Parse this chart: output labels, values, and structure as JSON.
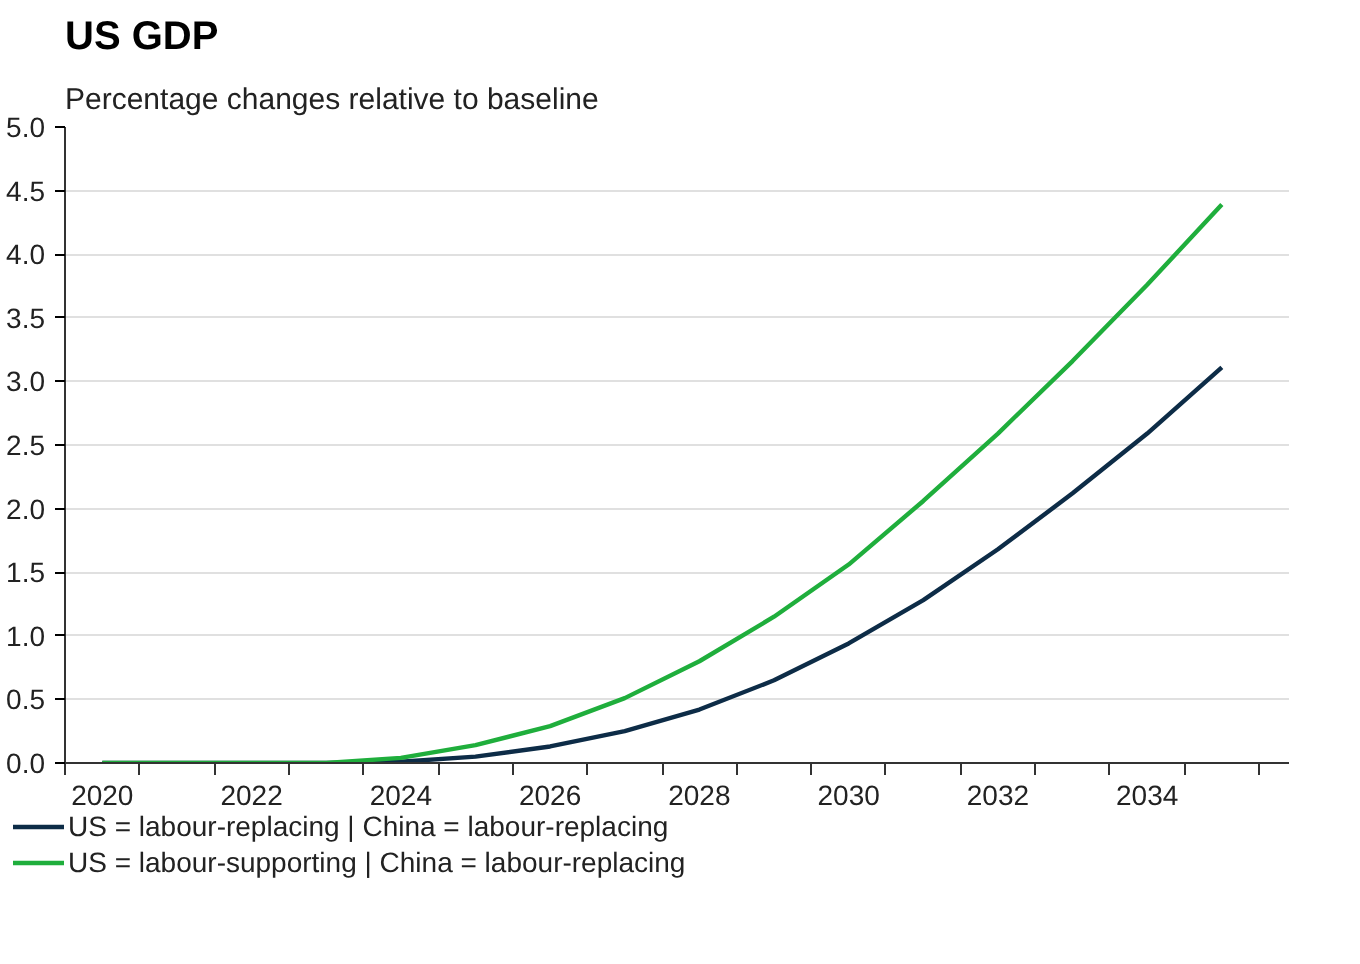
{
  "chart_data": {
    "type": "line",
    "title": "US GDP",
    "subtitle": "Percentage changes relative to baseline",
    "x": [
      2020,
      2021,
      2022,
      2023,
      2024,
      2025,
      2026,
      2027,
      2028,
      2029,
      2030,
      2031,
      2032,
      2033,
      2034,
      2035
    ],
    "series": [
      {
        "name": "US = labour-replacing | China = labour-replacing",
        "color": "#0d2c47",
        "values": [
          0,
          0,
          0,
          0,
          0.01,
          0.05,
          0.13,
          0.25,
          0.42,
          0.65,
          0.94,
          1.28,
          1.68,
          2.12,
          2.59,
          3.11
        ]
      },
      {
        "name": "US = labour-supporting | China = labour-replacing",
        "color": "#1fae3c",
        "values": [
          0,
          0,
          0,
          0,
          0.04,
          0.14,
          0.29,
          0.51,
          0.8,
          1.15,
          1.56,
          2.06,
          2.59,
          3.16,
          3.76,
          4.39
        ]
      }
    ],
    "xlim": [
      2019.5,
      2035.9
    ],
    "xticks": [
      {
        "value": 2019.5,
        "label": null
      },
      2020,
      {
        "value": 2020.5,
        "label": null
      },
      {
        "value": 2021.5,
        "label": null
      },
      2022,
      {
        "value": 2022.5,
        "label": null
      },
      {
        "value": 2023.5,
        "label": null
      },
      2024,
      {
        "value": 2024.5,
        "label": null
      },
      {
        "value": 2025.5,
        "label": null
      },
      2026,
      {
        "value": 2026.5,
        "label": null
      },
      {
        "value": 2027.5,
        "label": null
      },
      2028,
      {
        "value": 2028.5,
        "label": null
      },
      {
        "value": 2029.5,
        "label": null
      },
      2030,
      {
        "value": 2030.5,
        "label": null
      },
      {
        "value": 2031.5,
        "label": null
      },
      2032,
      {
        "value": 2032.5,
        "label": null
      },
      {
        "value": 2033.5,
        "label": null
      },
      2034,
      {
        "value": 2034.5,
        "label": null
      },
      {
        "value": 2035.5,
        "label": null
      }
    ],
    "ylim": [
      0,
      5
    ],
    "yticks": [
      {
        "value": 0,
        "label": "0.0"
      },
      {
        "value": 0.5,
        "label": "0.5"
      },
      {
        "value": 1,
        "label": "1.0"
      },
      {
        "value": 1.5,
        "label": "1.5"
      },
      {
        "value": 2,
        "label": "2.0"
      },
      {
        "value": 2.5,
        "label": "2.5"
      },
      {
        "value": 3,
        "label": "3.0"
      },
      {
        "value": 3.5,
        "label": "3.5"
      },
      {
        "value": 4,
        "label": "4.0"
      },
      {
        "value": 4.5,
        "label": "4.5"
      },
      {
        "value": 5,
        "label": "5.0"
      }
    ],
    "grid": "y",
    "legend": "bottom left",
    "line_style": "solid",
    "marker": "none"
  }
}
